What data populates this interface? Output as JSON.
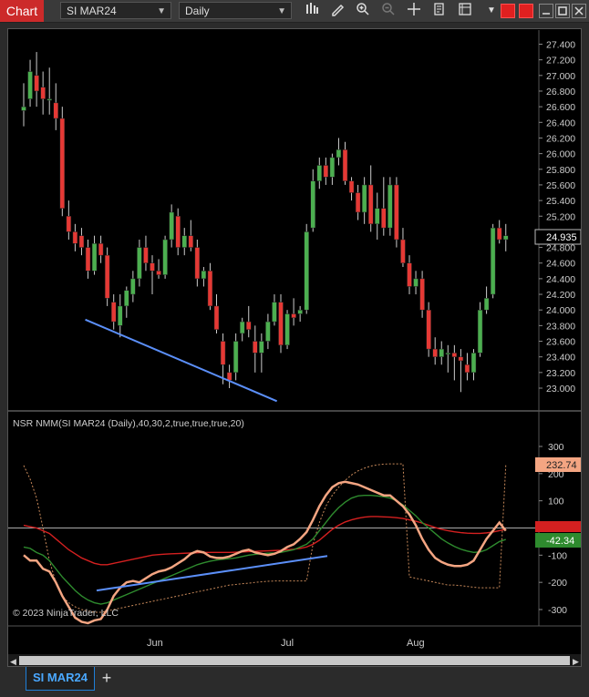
{
  "toolbar": {
    "title": "Chart",
    "instrument": "SI MAR24",
    "interval": "Daily"
  },
  "price_scale": {
    "ticks": [
      "27.400",
      "27.200",
      "27.000",
      "26.800",
      "26.600",
      "26.400",
      "26.200",
      "26.000",
      "25.800",
      "25.600",
      "25.400",
      "25.200",
      "25.000",
      "24.800",
      "24.600",
      "24.400",
      "24.200",
      "24.000",
      "23.800",
      "23.600",
      "23.400",
      "23.200",
      "23.000"
    ],
    "last_price": "24.935"
  },
  "indicator": {
    "label": "NSR NMM(SI MAR24 (Daily),40,30,2,true,true,true,20)",
    "ticks": [
      "300",
      "200",
      "100",
      "0",
      "-100",
      "-200",
      "-300"
    ],
    "value_top": "232.74",
    "value_mid": "-42.34",
    "copyright": "© 2023 NinjaTrader, LLC"
  },
  "time_axis": {
    "labels": [
      "Jun",
      "Jul",
      "Aug"
    ]
  },
  "tabs": {
    "active": "SI MAR24"
  },
  "colors": {
    "up": "#4caf50",
    "down": "#e53935",
    "trendline": "#5b8ff9",
    "osc_main": "#f4a582",
    "osc_green": "#2e8b2e",
    "osc_red": "#d42020"
  },
  "chart_data": {
    "type": "candlestick",
    "ylim": [
      22.8,
      27.6
    ],
    "candles": [
      {
        "o": 26.55,
        "h": 26.9,
        "l": 26.35,
        "c": 26.6
      },
      {
        "o": 26.7,
        "h": 27.2,
        "l": 26.6,
        "c": 27.05
      },
      {
        "o": 27.0,
        "h": 27.3,
        "l": 26.6,
        "c": 26.8
      },
      {
        "o": 26.85,
        "h": 27.05,
        "l": 26.5,
        "c": 26.7
      },
      {
        "o": 26.7,
        "h": 27.1,
        "l": 26.5,
        "c": 26.7
      },
      {
        "o": 26.65,
        "h": 26.9,
        "l": 26.3,
        "c": 26.45
      },
      {
        "o": 26.45,
        "h": 26.6,
        "l": 25.2,
        "c": 25.3
      },
      {
        "o": 25.2,
        "h": 25.4,
        "l": 24.9,
        "c": 25.0
      },
      {
        "o": 25.0,
        "h": 25.1,
        "l": 24.75,
        "c": 24.85
      },
      {
        "o": 24.95,
        "h": 25.05,
        "l": 24.7,
        "c": 24.8
      },
      {
        "o": 24.8,
        "h": 24.9,
        "l": 24.4,
        "c": 24.5
      },
      {
        "o": 24.5,
        "h": 24.95,
        "l": 24.45,
        "c": 24.85
      },
      {
        "o": 24.85,
        "h": 24.95,
        "l": 24.6,
        "c": 24.7
      },
      {
        "o": 24.7,
        "h": 24.8,
        "l": 24.05,
        "c": 24.15
      },
      {
        "o": 24.1,
        "h": 24.2,
        "l": 23.75,
        "c": 23.85
      },
      {
        "o": 23.8,
        "h": 24.2,
        "l": 23.65,
        "c": 24.05
      },
      {
        "o": 24.05,
        "h": 24.3,
        "l": 23.9,
        "c": 24.25
      },
      {
        "o": 24.2,
        "h": 24.5,
        "l": 24.1,
        "c": 24.4
      },
      {
        "o": 24.4,
        "h": 24.9,
        "l": 24.3,
        "c": 24.8
      },
      {
        "o": 24.8,
        "h": 24.95,
        "l": 24.5,
        "c": 24.6
      },
      {
        "o": 24.6,
        "h": 24.7,
        "l": 24.2,
        "c": 24.5
      },
      {
        "o": 24.5,
        "h": 24.65,
        "l": 24.4,
        "c": 24.45
      },
      {
        "o": 24.45,
        "h": 24.95,
        "l": 24.4,
        "c": 24.9
      },
      {
        "o": 24.9,
        "h": 25.35,
        "l": 24.8,
        "c": 25.25
      },
      {
        "o": 25.2,
        "h": 25.3,
        "l": 24.7,
        "c": 24.8
      },
      {
        "o": 24.8,
        "h": 25.05,
        "l": 24.7,
        "c": 24.95
      },
      {
        "o": 24.95,
        "h": 25.15,
        "l": 24.75,
        "c": 24.8
      },
      {
        "o": 24.8,
        "h": 24.9,
        "l": 24.3,
        "c": 24.4
      },
      {
        "o": 24.4,
        "h": 24.55,
        "l": 24.3,
        "c": 24.5
      },
      {
        "o": 24.5,
        "h": 24.6,
        "l": 24.0,
        "c": 24.05
      },
      {
        "o": 24.05,
        "h": 24.2,
        "l": 23.7,
        "c": 23.75
      },
      {
        "o": 23.6,
        "h": 23.7,
        "l": 23.05,
        "c": 23.3
      },
      {
        "o": 23.2,
        "h": 23.3,
        "l": 23.0,
        "c": 23.1
      },
      {
        "o": 23.2,
        "h": 23.7,
        "l": 23.1,
        "c": 23.6
      },
      {
        "o": 23.7,
        "h": 23.9,
        "l": 23.6,
        "c": 23.85
      },
      {
        "o": 23.85,
        "h": 24.05,
        "l": 23.65,
        "c": 23.75
      },
      {
        "o": 23.6,
        "h": 23.8,
        "l": 23.2,
        "c": 23.45
      },
      {
        "o": 23.45,
        "h": 23.7,
        "l": 23.2,
        "c": 23.6
      },
      {
        "o": 23.6,
        "h": 23.95,
        "l": 23.5,
        "c": 23.85
      },
      {
        "o": 23.85,
        "h": 24.2,
        "l": 23.8,
        "c": 24.1
      },
      {
        "o": 24.1,
        "h": 24.2,
        "l": 23.45,
        "c": 23.55
      },
      {
        "o": 23.55,
        "h": 24.0,
        "l": 23.5,
        "c": 23.95
      },
      {
        "o": 23.95,
        "h": 24.15,
        "l": 23.8,
        "c": 23.9
      },
      {
        "o": 23.95,
        "h": 24.05,
        "l": 23.85,
        "c": 24.0
      },
      {
        "o": 24.0,
        "h": 25.1,
        "l": 23.95,
        "c": 25.0
      },
      {
        "o": 25.05,
        "h": 25.8,
        "l": 25.0,
        "c": 25.65
      },
      {
        "o": 25.65,
        "h": 25.95,
        "l": 25.55,
        "c": 25.85
      },
      {
        "o": 25.85,
        "h": 25.95,
        "l": 25.6,
        "c": 25.7
      },
      {
        "o": 25.7,
        "h": 26.0,
        "l": 25.6,
        "c": 25.95
      },
      {
        "o": 25.95,
        "h": 26.2,
        "l": 25.85,
        "c": 26.05
      },
      {
        "o": 26.05,
        "h": 26.15,
        "l": 25.6,
        "c": 25.65
      },
      {
        "o": 25.65,
        "h": 25.7,
        "l": 25.4,
        "c": 25.5
      },
      {
        "o": 25.5,
        "h": 25.6,
        "l": 25.15,
        "c": 25.25
      },
      {
        "o": 25.25,
        "h": 25.7,
        "l": 25.1,
        "c": 25.6
      },
      {
        "o": 25.6,
        "h": 25.85,
        "l": 25.0,
        "c": 25.1
      },
      {
        "o": 25.1,
        "h": 25.5,
        "l": 24.9,
        "c": 25.3
      },
      {
        "o": 25.3,
        "h": 25.7,
        "l": 24.95,
        "c": 25.05
      },
      {
        "o": 25.05,
        "h": 25.7,
        "l": 24.95,
        "c": 25.6
      },
      {
        "o": 25.6,
        "h": 25.7,
        "l": 24.8,
        "c": 24.9
      },
      {
        "o": 24.9,
        "h": 25.05,
        "l": 24.55,
        "c": 24.6
      },
      {
        "o": 24.6,
        "h": 24.7,
        "l": 24.2,
        "c": 24.3
      },
      {
        "o": 24.3,
        "h": 24.5,
        "l": 24.2,
        "c": 24.4
      },
      {
        "o": 24.4,
        "h": 24.5,
        "l": 23.9,
        "c": 24.0
      },
      {
        "o": 24.0,
        "h": 24.1,
        "l": 23.4,
        "c": 23.5
      },
      {
        "o": 23.5,
        "h": 23.65,
        "l": 23.3,
        "c": 23.4
      },
      {
        "o": 23.4,
        "h": 23.6,
        "l": 23.3,
        "c": 23.5
      },
      {
        "o": 23.45,
        "h": 23.55,
        "l": 23.2,
        "c": 23.45
      },
      {
        "o": 23.45,
        "h": 23.55,
        "l": 23.1,
        "c": 23.4
      },
      {
        "o": 23.4,
        "h": 23.5,
        "l": 22.95,
        "c": 23.35
      },
      {
        "o": 23.3,
        "h": 23.45,
        "l": 23.1,
        "c": 23.2
      },
      {
        "o": 23.2,
        "h": 23.5,
        "l": 23.1,
        "c": 23.45
      },
      {
        "o": 23.45,
        "h": 24.1,
        "l": 23.4,
        "c": 24.0
      },
      {
        "o": 24.0,
        "h": 24.3,
        "l": 23.95,
        "c": 24.15
      },
      {
        "o": 24.2,
        "h": 25.1,
        "l": 24.15,
        "c": 25.05
      },
      {
        "o": 25.05,
        "h": 25.15,
        "l": 24.85,
        "c": 24.9
      },
      {
        "o": 24.9,
        "h": 25.1,
        "l": 24.75,
        "c": 24.95
      }
    ],
    "trendline": {
      "from": {
        "i": 11,
        "v": 23.9
      },
      "to": {
        "i": 33,
        "v": 22.95
      }
    },
    "osc_ylim": [
      -350,
      380
    ],
    "osc_main": [
      -100,
      -120,
      -120,
      -150,
      -160,
      -200,
      -250,
      -290,
      -330,
      -345,
      -350,
      -340,
      -335,
      -300,
      -250,
      -220,
      -200,
      -195,
      -200,
      -185,
      -170,
      -160,
      -155,
      -145,
      -130,
      -115,
      -95,
      -85,
      -90,
      -105,
      -110,
      -110,
      -105,
      -95,
      -85,
      -80,
      -90,
      -95,
      -100,
      -95,
      -85,
      -70,
      -60,
      -40,
      -15,
      30,
      80,
      120,
      150,
      165,
      170,
      165,
      160,
      150,
      140,
      130,
      120,
      120,
      100,
      80,
      50,
      10,
      -40,
      -80,
      -110,
      -125,
      -135,
      -140,
      -140,
      -135,
      -120,
      -80,
      -40,
      -10,
      20,
      -10
    ],
    "osc_green": [
      -70,
      -75,
      -90,
      -100,
      -120,
      -150,
      -180,
      -205,
      -230,
      -250,
      -265,
      -275,
      -280,
      -275,
      -265,
      -255,
      -245,
      -235,
      -225,
      -215,
      -205,
      -195,
      -185,
      -175,
      -165,
      -155,
      -145,
      -135,
      -128,
      -122,
      -118,
      -115,
      -113,
      -110,
      -105,
      -100,
      -97,
      -95,
      -93,
      -92,
      -90,
      -85,
      -80,
      -70,
      -60,
      -40,
      -10,
      20,
      50,
      75,
      95,
      110,
      118,
      120,
      120,
      118,
      115,
      110,
      100,
      85,
      65,
      45,
      20,
      0,
      -20,
      -40,
      -55,
      -68,
      -78,
      -85,
      -90,
      -88,
      -80,
      -65,
      -50,
      -42
    ],
    "osc_red": [
      10,
      5,
      0,
      -10,
      -20,
      -40,
      -60,
      -80,
      -95,
      -110,
      -120,
      -130,
      -135,
      -135,
      -130,
      -125,
      -120,
      -115,
      -110,
      -105,
      -100,
      -98,
      -96,
      -95,
      -94,
      -93,
      -92,
      -91,
      -90,
      -90,
      -90,
      -90,
      -90,
      -89,
      -88,
      -87,
      -86,
      -85,
      -84,
      -83,
      -82,
      -80,
      -78,
      -75,
      -70,
      -60,
      -45,
      -25,
      -5,
      10,
      22,
      30,
      36,
      40,
      42,
      42,
      41,
      40,
      38,
      35,
      30,
      25,
      18,
      10,
      2,
      -5,
      -10,
      -14,
      -17,
      -19,
      -20,
      -20,
      -18,
      -15,
      -10,
      -5
    ],
    "osc_dotted": [
      230,
      180,
      110,
      0,
      -120,
      -200,
      -250,
      -275,
      -290,
      -300,
      -305,
      -310,
      -310,
      -305,
      -300,
      -295,
      -290,
      -285,
      -280,
      -275,
      -270,
      -265,
      -260,
      -255,
      -250,
      -245,
      -240,
      -235,
      -230,
      -225,
      -220,
      -215,
      -210,
      -208,
      -205,
      -203,
      -200,
      -198,
      -196,
      -195,
      -195,
      -195,
      -195,
      -195,
      -195,
      -60,
      20,
      80,
      120,
      150,
      175,
      195,
      210,
      220,
      228,
      232,
      235,
      236,
      236,
      236,
      -180,
      -185,
      -190,
      -195,
      -200,
      -205,
      -210,
      -210,
      -212,
      -215,
      -218,
      -220,
      -220,
      -220,
      -220,
      232
    ]
  }
}
